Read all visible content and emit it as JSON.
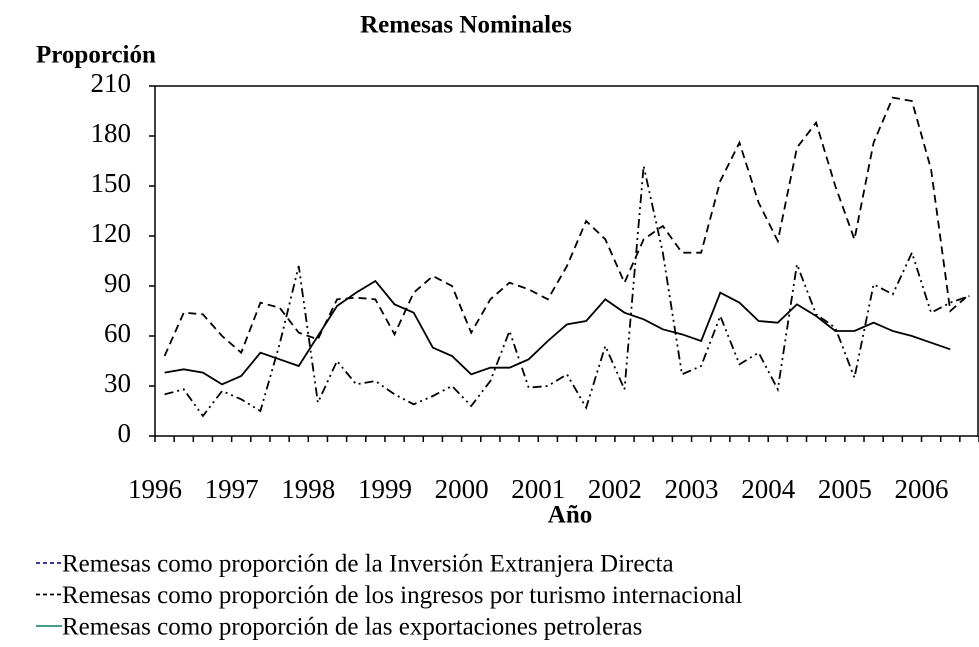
{
  "chart_data": {
    "type": "line",
    "title": "Remesas Nominales",
    "y_label": "Proporción",
    "x_label": "Año",
    "categories": [
      "1996",
      null,
      null,
      null,
      "1997",
      null,
      null,
      null,
      "1998",
      null,
      null,
      null,
      "1999",
      null,
      null,
      null,
      "2000",
      null,
      null,
      null,
      "2001",
      null,
      null,
      null,
      "2002",
      null,
      null,
      null,
      "2003",
      null,
      null,
      null,
      "2004",
      null,
      null,
      null,
      "2005",
      null,
      null,
      null,
      "2006",
      null,
      null
    ],
    "series": [
      {
        "name": "Remesas como proporción de la Inversión Extranjera Directa",
        "color": "#000000",
        "legend_color": "#1f1f8f",
        "dash": "dashdot",
        "values": [
          25,
          28,
          12,
          27,
          22,
          15,
          55,
          102,
          20,
          45,
          31,
          33,
          25,
          19,
          24,
          30,
          18,
          33,
          63,
          29,
          30,
          37,
          17,
          54,
          28,
          162,
          110,
          37,
          42,
          72,
          43,
          50,
          28,
          103,
          73,
          65,
          35,
          91,
          85,
          110,
          74,
          80,
          84
        ]
      },
      {
        "name": "Remesas como proporción de los ingresos por turismo internacional",
        "color": "#000000",
        "legend_color": "#000000",
        "dash": "dashed",
        "values": [
          48,
          74,
          73,
          60,
          50,
          80,
          77,
          62,
          58,
          82,
          83,
          82,
          61,
          86,
          96,
          90,
          62,
          82,
          92,
          88,
          82,
          102,
          129,
          118,
          92,
          118,
          126,
          110,
          110,
          153,
          176,
          140,
          117,
          173,
          188,
          150,
          118,
          176,
          203,
          201,
          160,
          75,
          85
        ]
      },
      {
        "name": "Remesas como proporción de las exportaciones petroleras",
        "color": "#000000",
        "legend_color": "#2e8b7a",
        "dash": "solid",
        "values": [
          38,
          40,
          38,
          31,
          36,
          50,
          46,
          42,
          60,
          78,
          86,
          93,
          79,
          74,
          53,
          48,
          37,
          41,
          41,
          46,
          57,
          67,
          69,
          82,
          74,
          70,
          64,
          61,
          57,
          86,
          80,
          69,
          68,
          79,
          72,
          63,
          63,
          68,
          63,
          60,
          56,
          52,
          null
        ]
      }
    ],
    "ylim": [
      0,
      210
    ],
    "yticks": [
      0,
      30,
      60,
      90,
      120,
      150,
      180,
      210
    ],
    "grid": false
  }
}
